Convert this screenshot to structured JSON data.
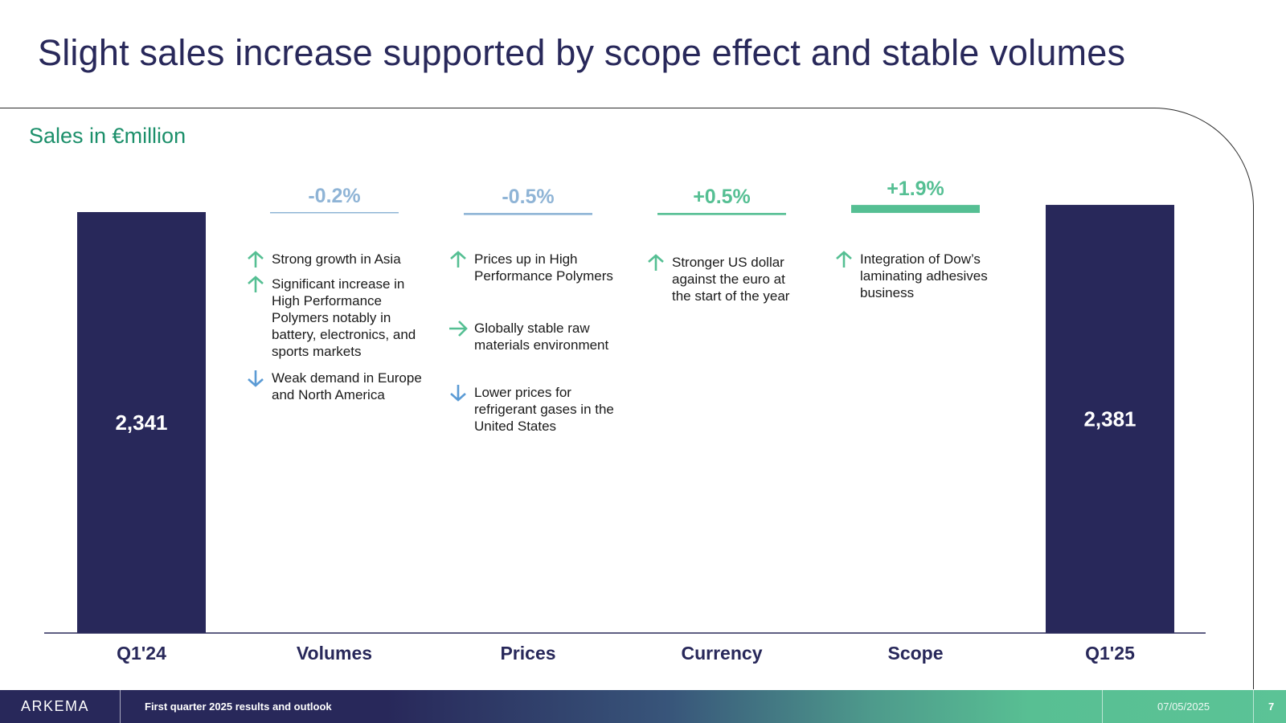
{
  "slide": {
    "title": "Slight sales increase supported by scope effect and stable volumes",
    "subtitle": "Sales in €million"
  },
  "colors": {
    "bar": "#28285a",
    "negative": "#8fb4d6",
    "positive": "#55bf93",
    "arrow_up": "#55bf93",
    "arrow_down": "#5b9bd5"
  },
  "chart_data": {
    "type": "bar",
    "subtype": "waterfall",
    "title": "",
    "ylabel": "Sales in €million",
    "categories": [
      "Q1'24",
      "Volumes",
      "Prices",
      "Currency",
      "Scope",
      "Q1'25"
    ],
    "totals": [
      {
        "category": "Q1'24",
        "value": 2341,
        "label": "2,341"
      },
      {
        "category": "Q1'25",
        "value": 2381,
        "label": "2,381"
      }
    ],
    "changes": [
      {
        "category": "Volumes",
        "pct": -0.2,
        "label": "-0.2%",
        "direction": "negative"
      },
      {
        "category": "Prices",
        "pct": -0.5,
        "label": "-0.5%",
        "direction": "negative"
      },
      {
        "category": "Currency",
        "pct": 0.5,
        "label": "+0.5%",
        "direction": "positive"
      },
      {
        "category": "Scope",
        "pct": 1.9,
        "label": "+1.9%",
        "direction": "positive"
      }
    ]
  },
  "notes": {
    "volumes": [
      {
        "icon": "arrow-up-icon",
        "text": "Strong growth in Asia"
      },
      {
        "icon": "arrow-up-icon",
        "text": "Significant increase in High Performance Polymers notably in battery, electronics, and sports markets"
      },
      {
        "icon": "arrow-down-icon",
        "text": "Weak demand in Europe and North America"
      }
    ],
    "prices": [
      {
        "icon": "arrow-up-icon",
        "text": "Prices up in High Performance Polymers"
      },
      {
        "icon": "arrow-right-icon",
        "text": "Globally stable raw materials environment"
      },
      {
        "icon": "arrow-down-icon",
        "text": "Lower prices for refrigerant gases in the United States"
      }
    ],
    "currency": [
      {
        "icon": "arrow-up-icon",
        "text": "Stronger US dollar against the euro at the start of the year"
      }
    ],
    "scope": [
      {
        "icon": "arrow-up-icon",
        "text": "Integration of Dow’s laminating adhesives business"
      }
    ]
  },
  "footer": {
    "logo": "ARKEMA",
    "text": "First quarter 2025 results and outlook",
    "date": "07/05/2025",
    "page": "7"
  }
}
